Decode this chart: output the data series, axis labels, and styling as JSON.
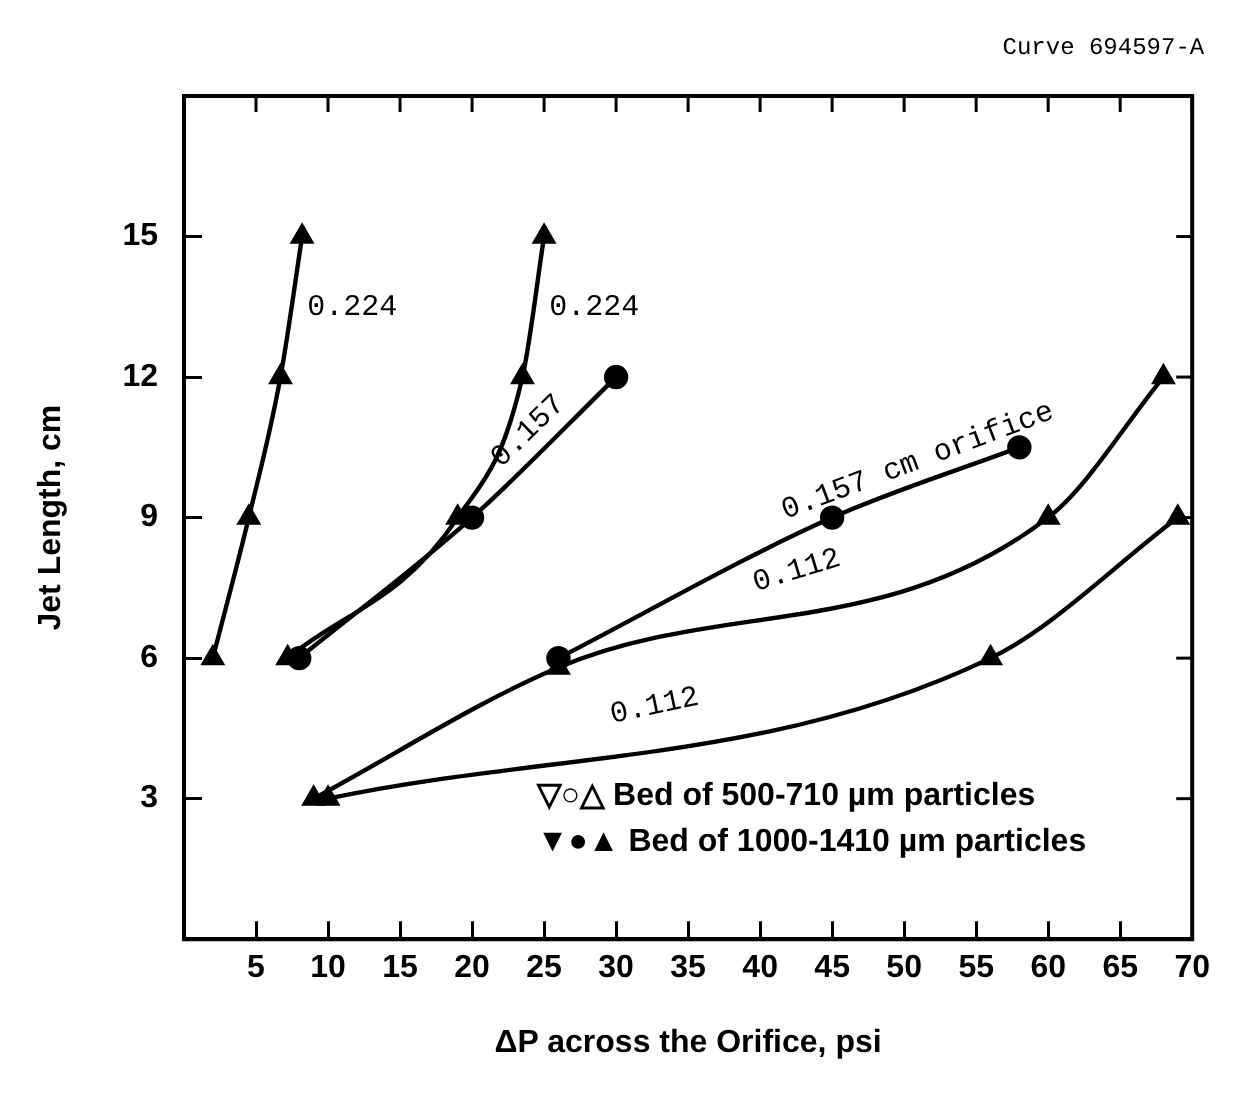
{
  "chart_data": {
    "type": "line",
    "xlabel": "ΔP across the Orifice, psi",
    "ylabel": "Jet Length, cm",
    "annotations": [
      "Curve 694597-A",
      "▽○△ Bed of 500-710 µm particles",
      "▼●▲ Bed of 1000-1410 µm particles"
    ],
    "xlim": [
      0,
      70
    ],
    "xticks": [
      5,
      10,
      15,
      20,
      25,
      30,
      35,
      40,
      45,
      50,
      55,
      60,
      65,
      70
    ],
    "ylim": [
      0,
      18
    ],
    "yticks": [
      3,
      6,
      9,
      12,
      15
    ],
    "grid": false,
    "legend": false,
    "line_style": "solid",
    "series": [
      {
        "name": "0.224",
        "color": "#000000",
        "marker": "triangle",
        "x": [
          2,
          4.5,
          6.7,
          8.2
        ],
        "values": [
          6,
          9,
          12,
          15
        ]
      },
      {
        "name": "0.224",
        "color": "#000000",
        "marker": "triangle",
        "x": [
          7.2,
          19,
          23.5,
          25
        ],
        "values": [
          6,
          9,
          12,
          15
        ]
      },
      {
        "name": "0.157",
        "color": "#000000",
        "marker": "circle",
        "x": [
          8,
          20,
          30
        ],
        "values": [
          6,
          9,
          12
        ]
      },
      {
        "name": "0.157 cm orifice",
        "color": "#000000",
        "marker": "circle",
        "x": [
          26,
          45,
          58
        ],
        "values": [
          6,
          9,
          10.5
        ]
      },
      {
        "name": "0.112",
        "color": "#000000",
        "marker": "triangle",
        "x": [
          9,
          26,
          60,
          68
        ],
        "values": [
          3,
          5.8,
          9,
          12
        ]
      },
      {
        "name": "0.112",
        "color": "#000000",
        "marker": "triangle",
        "x": [
          10,
          56,
          69
        ],
        "values": [
          3,
          6,
          9
        ]
      }
    ]
  }
}
